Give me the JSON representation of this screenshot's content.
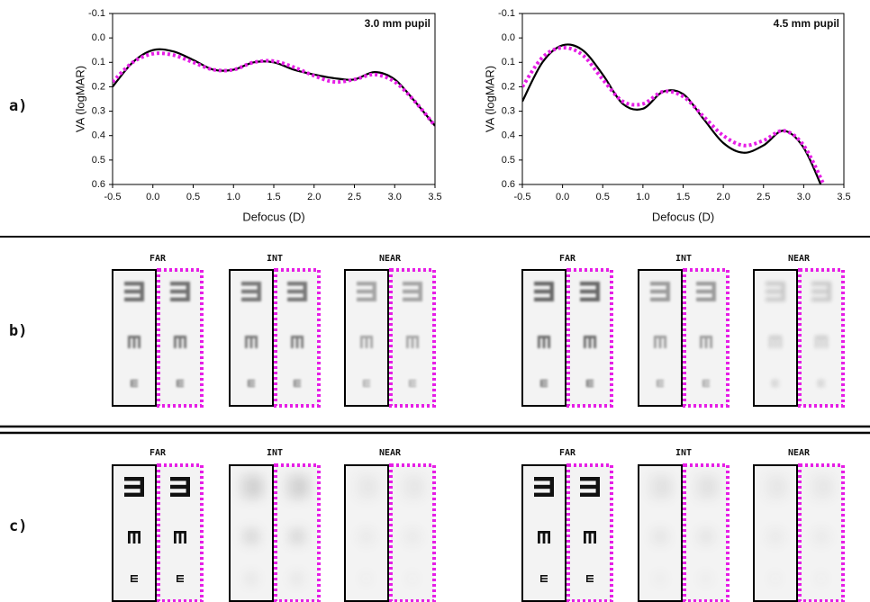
{
  "chart_data": [
    {
      "type": "line",
      "annotation": "3.0 mm pupil",
      "xlabel": "Defocus (D)",
      "ylabel": "VA (logMAR)",
      "x": [
        -0.5,
        -0.25,
        0,
        0.25,
        0.5,
        0.75,
        1,
        1.25,
        1.5,
        1.75,
        2,
        2.25,
        2.5,
        2.75,
        3,
        3.25,
        3.5
      ],
      "series": [
        {
          "color": "#000000",
          "style": "solid",
          "values": [
            0.2,
            0.1,
            0.05,
            0.055,
            0.09,
            0.13,
            0.13,
            0.1,
            0.1,
            0.13,
            0.15,
            0.165,
            0.17,
            0.14,
            0.17,
            0.26,
            0.36
          ]
        },
        {
          "color": "#e61ee6",
          "style": "dotted",
          "values": [
            0.18,
            0.1,
            0.065,
            0.07,
            0.1,
            0.13,
            0.13,
            0.1,
            0.095,
            0.12,
            0.155,
            0.18,
            0.17,
            0.15,
            0.18,
            0.26,
            0.36
          ]
        }
      ],
      "xlim": [
        -0.5,
        3.5
      ],
      "xticks": [
        -0.5,
        {
          "value": 0,
          "label": "0.0"
        },
        0.5,
        {
          "value": 1,
          "label": "1.0"
        },
        1.5,
        {
          "value": 2,
          "label": "2.0"
        },
        2.5,
        {
          "value": 3,
          "label": "3.0"
        },
        3.5
      ],
      "ylim": [
        -0.1,
        0.6
      ],
      "y_inverted": true,
      "yticks": [
        -0.1,
        {
          "value": 0,
          "label": "0.0"
        },
        0.1,
        0.2,
        0.3,
        0.4,
        0.5,
        0.6
      ]
    },
    {
      "type": "line",
      "annotation": "4.5 mm pupil",
      "xlabel": "Defocus (D)",
      "ylabel": "VA (logMAR)",
      "x": [
        -0.5,
        -0.25,
        0,
        0.25,
        0.5,
        0.75,
        1,
        1.25,
        1.5,
        1.75,
        2,
        2.25,
        2.5,
        2.75,
        3,
        3.25,
        3.5
      ],
      "series": [
        {
          "color": "#000000",
          "style": "solid",
          "values": [
            0.26,
            0.1,
            0.03,
            0.05,
            0.15,
            0.27,
            0.29,
            0.22,
            0.23,
            0.33,
            0.43,
            0.47,
            0.44,
            0.38,
            0.45,
            0.63,
            null
          ]
        },
        {
          "color": "#e61ee6",
          "style": "dotted",
          "values": [
            0.2,
            0.08,
            0.04,
            0.07,
            0.17,
            0.26,
            0.27,
            0.22,
            0.24,
            0.32,
            0.4,
            0.44,
            0.42,
            0.38,
            0.44,
            0.6,
            null
          ]
        }
      ],
      "xlim": [
        -0.5,
        3.5
      ],
      "xticks": [
        -0.5,
        {
          "value": 0,
          "label": "0.0"
        },
        0.5,
        {
          "value": 1,
          "label": "1.0"
        },
        1.5,
        {
          "value": 2,
          "label": "2.0"
        },
        2.5,
        {
          "value": 3,
          "label": "3.0"
        },
        3.5
      ],
      "ylim": [
        -0.1,
        0.6
      ],
      "y_inverted": true,
      "yticks": [
        -0.1,
        {
          "value": 0,
          "label": "0.0"
        },
        0.1,
        0.2,
        0.3,
        0.4,
        0.5,
        0.6
      ]
    }
  ],
  "panel_labels": [
    "a)",
    "b)",
    "c)"
  ],
  "image_rows": [
    {
      "groups": [
        "FAR",
        "INT",
        "NEAR",
        "FAR",
        "INT",
        "NEAR"
      ]
    },
    {
      "groups": [
        "FAR",
        "INT",
        "NEAR",
        "FAR",
        "INT",
        "NEAR"
      ]
    }
  ]
}
